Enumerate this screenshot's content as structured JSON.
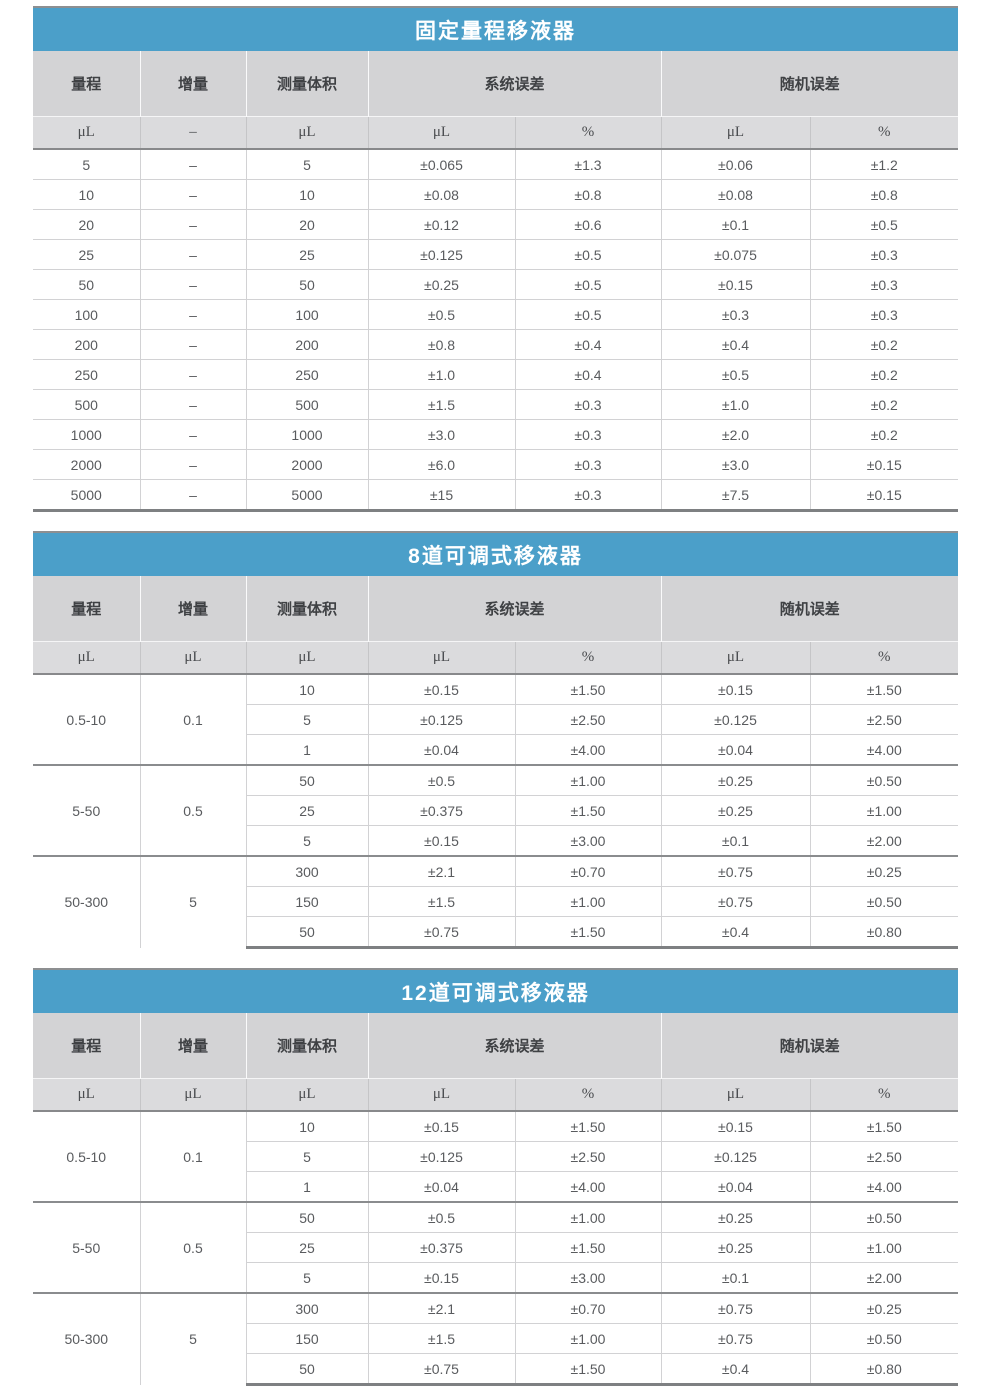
{
  "colors": {
    "accent": "#4B9FC9",
    "header_bg": "#D3D3D5",
    "units_bg": "#DBDBDD",
    "title_text": "#FFFFFF",
    "body_text": "#595B5E",
    "group_border": "#8A8C8E"
  },
  "tables": [
    {
      "title": "固定量程移液器",
      "columns": [
        "量程",
        "增量",
        "测量体积",
        "系统误差",
        "随机误差"
      ],
      "units": [
        "μL",
        "–",
        "μL",
        "μL",
        "%",
        "μL",
        "%"
      ],
      "rows": [
        [
          "5",
          "–",
          "5",
          "±0.065",
          "±1.3",
          "±0.06",
          "±1.2"
        ],
        [
          "10",
          "–",
          "10",
          "±0.08",
          "±0.8",
          "±0.08",
          "±0.8"
        ],
        [
          "20",
          "–",
          "20",
          "±0.12",
          "±0.6",
          "±0.1",
          "±0.5"
        ],
        [
          "25",
          "–",
          "25",
          "±0.125",
          "±0.5",
          "±0.075",
          "±0.3"
        ],
        [
          "50",
          "–",
          "50",
          "±0.25",
          "±0.5",
          "±0.15",
          "±0.3"
        ],
        [
          "100",
          "–",
          "100",
          "±0.5",
          "±0.5",
          "±0.3",
          "±0.3"
        ],
        [
          "200",
          "–",
          "200",
          "±0.8",
          "±0.4",
          "±0.4",
          "±0.2"
        ],
        [
          "250",
          "–",
          "250",
          "±1.0",
          "±0.4",
          "±0.5",
          "±0.2"
        ],
        [
          "500",
          "–",
          "500",
          "±1.5",
          "±0.3",
          "±1.0",
          "±0.2"
        ],
        [
          "1000",
          "–",
          "1000",
          "±3.0",
          "±0.3",
          "±2.0",
          "±0.2"
        ],
        [
          "2000",
          "–",
          "2000",
          "±6.0",
          "±0.3",
          "±3.0",
          "±0.15"
        ],
        [
          "5000",
          "–",
          "5000",
          "±15",
          "±0.3",
          "±7.5",
          "±0.15"
        ]
      ]
    },
    {
      "title": "8道可调式移液器",
      "columns": [
        "量程",
        "增量",
        "测量体积",
        "系统误差",
        "随机误差"
      ],
      "units": [
        "μL",
        "μL",
        "μL",
        "μL",
        "%",
        "μL",
        "%"
      ],
      "groups": [
        {
          "range": "0.5-10",
          "increment": "0.1",
          "rows": [
            [
              "10",
              "±0.15",
              "±1.50",
              "±0.15",
              "±1.50"
            ],
            [
              "5",
              "±0.125",
              "±2.50",
              "±0.125",
              "±2.50"
            ],
            [
              "1",
              "±0.04",
              "±4.00",
              "±0.04",
              "±4.00"
            ]
          ]
        },
        {
          "range": "5-50",
          "increment": "0.5",
          "rows": [
            [
              "50",
              "±0.5",
              "±1.00",
              "±0.25",
              "±0.50"
            ],
            [
              "25",
              "±0.375",
              "±1.50",
              "±0.25",
              "±1.00"
            ],
            [
              "5",
              "±0.15",
              "±3.00",
              "±0.1",
              "±2.00"
            ]
          ]
        },
        {
          "range": "50-300",
          "increment": "5",
          "rows": [
            [
              "300",
              "±2.1",
              "±0.70",
              "±0.75",
              "±0.25"
            ],
            [
              "150",
              "±1.5",
              "±1.00",
              "±0.75",
              "±0.50"
            ],
            [
              "50",
              "±0.75",
              "±1.50",
              "±0.4",
              "±0.80"
            ]
          ]
        }
      ]
    },
    {
      "title": "12道可调式移液器",
      "columns": [
        "量程",
        "增量",
        "测量体积",
        "系统误差",
        "随机误差"
      ],
      "units": [
        "μL",
        "μL",
        "μL",
        "μL",
        "%",
        "μL",
        "%"
      ],
      "groups": [
        {
          "range": "0.5-10",
          "increment": "0.1",
          "rows": [
            [
              "10",
              "±0.15",
              "±1.50",
              "±0.15",
              "±1.50"
            ],
            [
              "5",
              "±0.125",
              "±2.50",
              "±0.125",
              "±2.50"
            ],
            [
              "1",
              "±0.04",
              "±4.00",
              "±0.04",
              "±4.00"
            ]
          ]
        },
        {
          "range": "5-50",
          "increment": "0.5",
          "rows": [
            [
              "50",
              "±0.5",
              "±1.00",
              "±0.25",
              "±0.50"
            ],
            [
              "25",
              "±0.375",
              "±1.50",
              "±0.25",
              "±1.00"
            ],
            [
              "5",
              "±0.15",
              "±3.00",
              "±0.1",
              "±2.00"
            ]
          ]
        },
        {
          "range": "50-300",
          "increment": "5",
          "rows": [
            [
              "300",
              "±2.1",
              "±0.70",
              "±0.75",
              "±0.25"
            ],
            [
              "150",
              "±1.5",
              "±1.00",
              "±0.75",
              "±0.50"
            ],
            [
              "50",
              "±0.75",
              "±1.50",
              "±0.4",
              "±0.80"
            ]
          ]
        }
      ]
    }
  ]
}
